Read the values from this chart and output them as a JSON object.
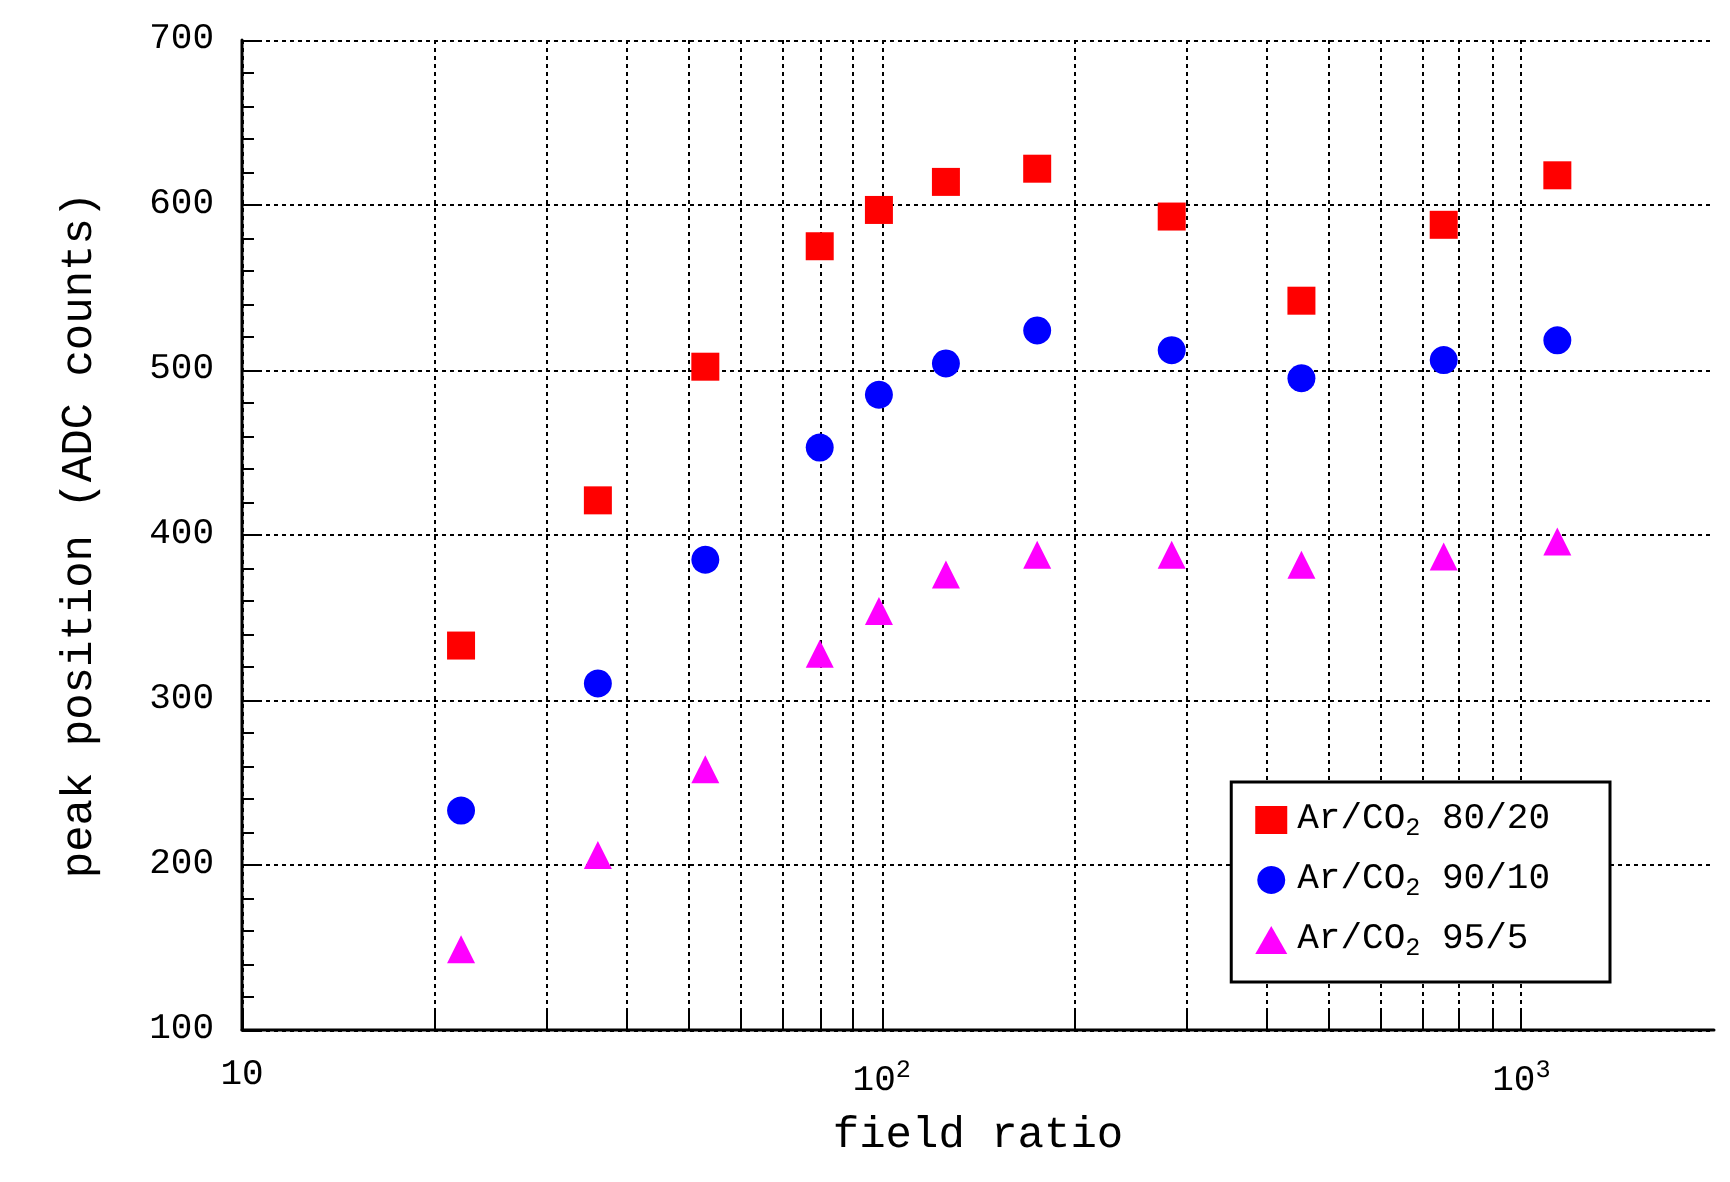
{
  "chart_data": {
    "type": "scatter",
    "xlabel": "field ratio",
    "ylabel": "peak position (ADC counts)",
    "x": [
      22,
      36,
      53,
      80,
      99,
      126,
      175,
      284,
      453,
      756,
      1138
    ],
    "series": [
      {
        "name": "Ar/CO$_{2}$ 80/20",
        "color": "#ff0000",
        "marker": "square",
        "values": [
          333,
          421,
          502,
          575,
          597,
          614,
          622,
          593,
          542,
          588,
          618
        ]
      },
      {
        "name": "Ar/CO$_{2}$ 90/10",
        "color": "#0000ff",
        "marker": "circle",
        "values": [
          233,
          310,
          385,
          453,
          485,
          504,
          524,
          512,
          495,
          506,
          518
        ]
      },
      {
        "name": "Ar/CO$_{2}$ 95/5",
        "color": "#ff00ff",
        "marker": "triangle",
        "values": [
          149,
          206,
          258,
          328,
          354,
          376,
          388,
          388,
          382,
          387,
          396
        ]
      }
    ],
    "log": "x",
    "xlim": [
      10,
      2000
    ],
    "ylim": [
      100,
      700
    ],
    "xticks": [
      {
        "value": 10,
        "label": "10"
      },
      {
        "value": 20,
        "label": null
      },
      {
        "value": 30,
        "label": null
      },
      {
        "value": 40,
        "label": null
      },
      {
        "value": 50,
        "label": null
      },
      {
        "value": 60,
        "label": null
      },
      {
        "value": 70,
        "label": null
      },
      {
        "value": 80,
        "label": null
      },
      {
        "value": 90,
        "label": null
      },
      {
        "value": 100,
        "label": "10$^{2}$"
      },
      {
        "value": 200,
        "label": null
      },
      {
        "value": 300,
        "label": null
      },
      {
        "value": 400,
        "label": null
      },
      {
        "value": 500,
        "label": null
      },
      {
        "value": 600,
        "label": null
      },
      {
        "value": 700,
        "label": null
      },
      {
        "value": 800,
        "label": null
      },
      {
        "value": 900,
        "label": null
      },
      {
        "value": 1000,
        "label": "10$^{3}$"
      }
    ],
    "yticks": [
      100,
      200,
      300,
      400,
      500,
      600,
      700
    ],
    "grid": true,
    "legend": "bottom right"
  }
}
